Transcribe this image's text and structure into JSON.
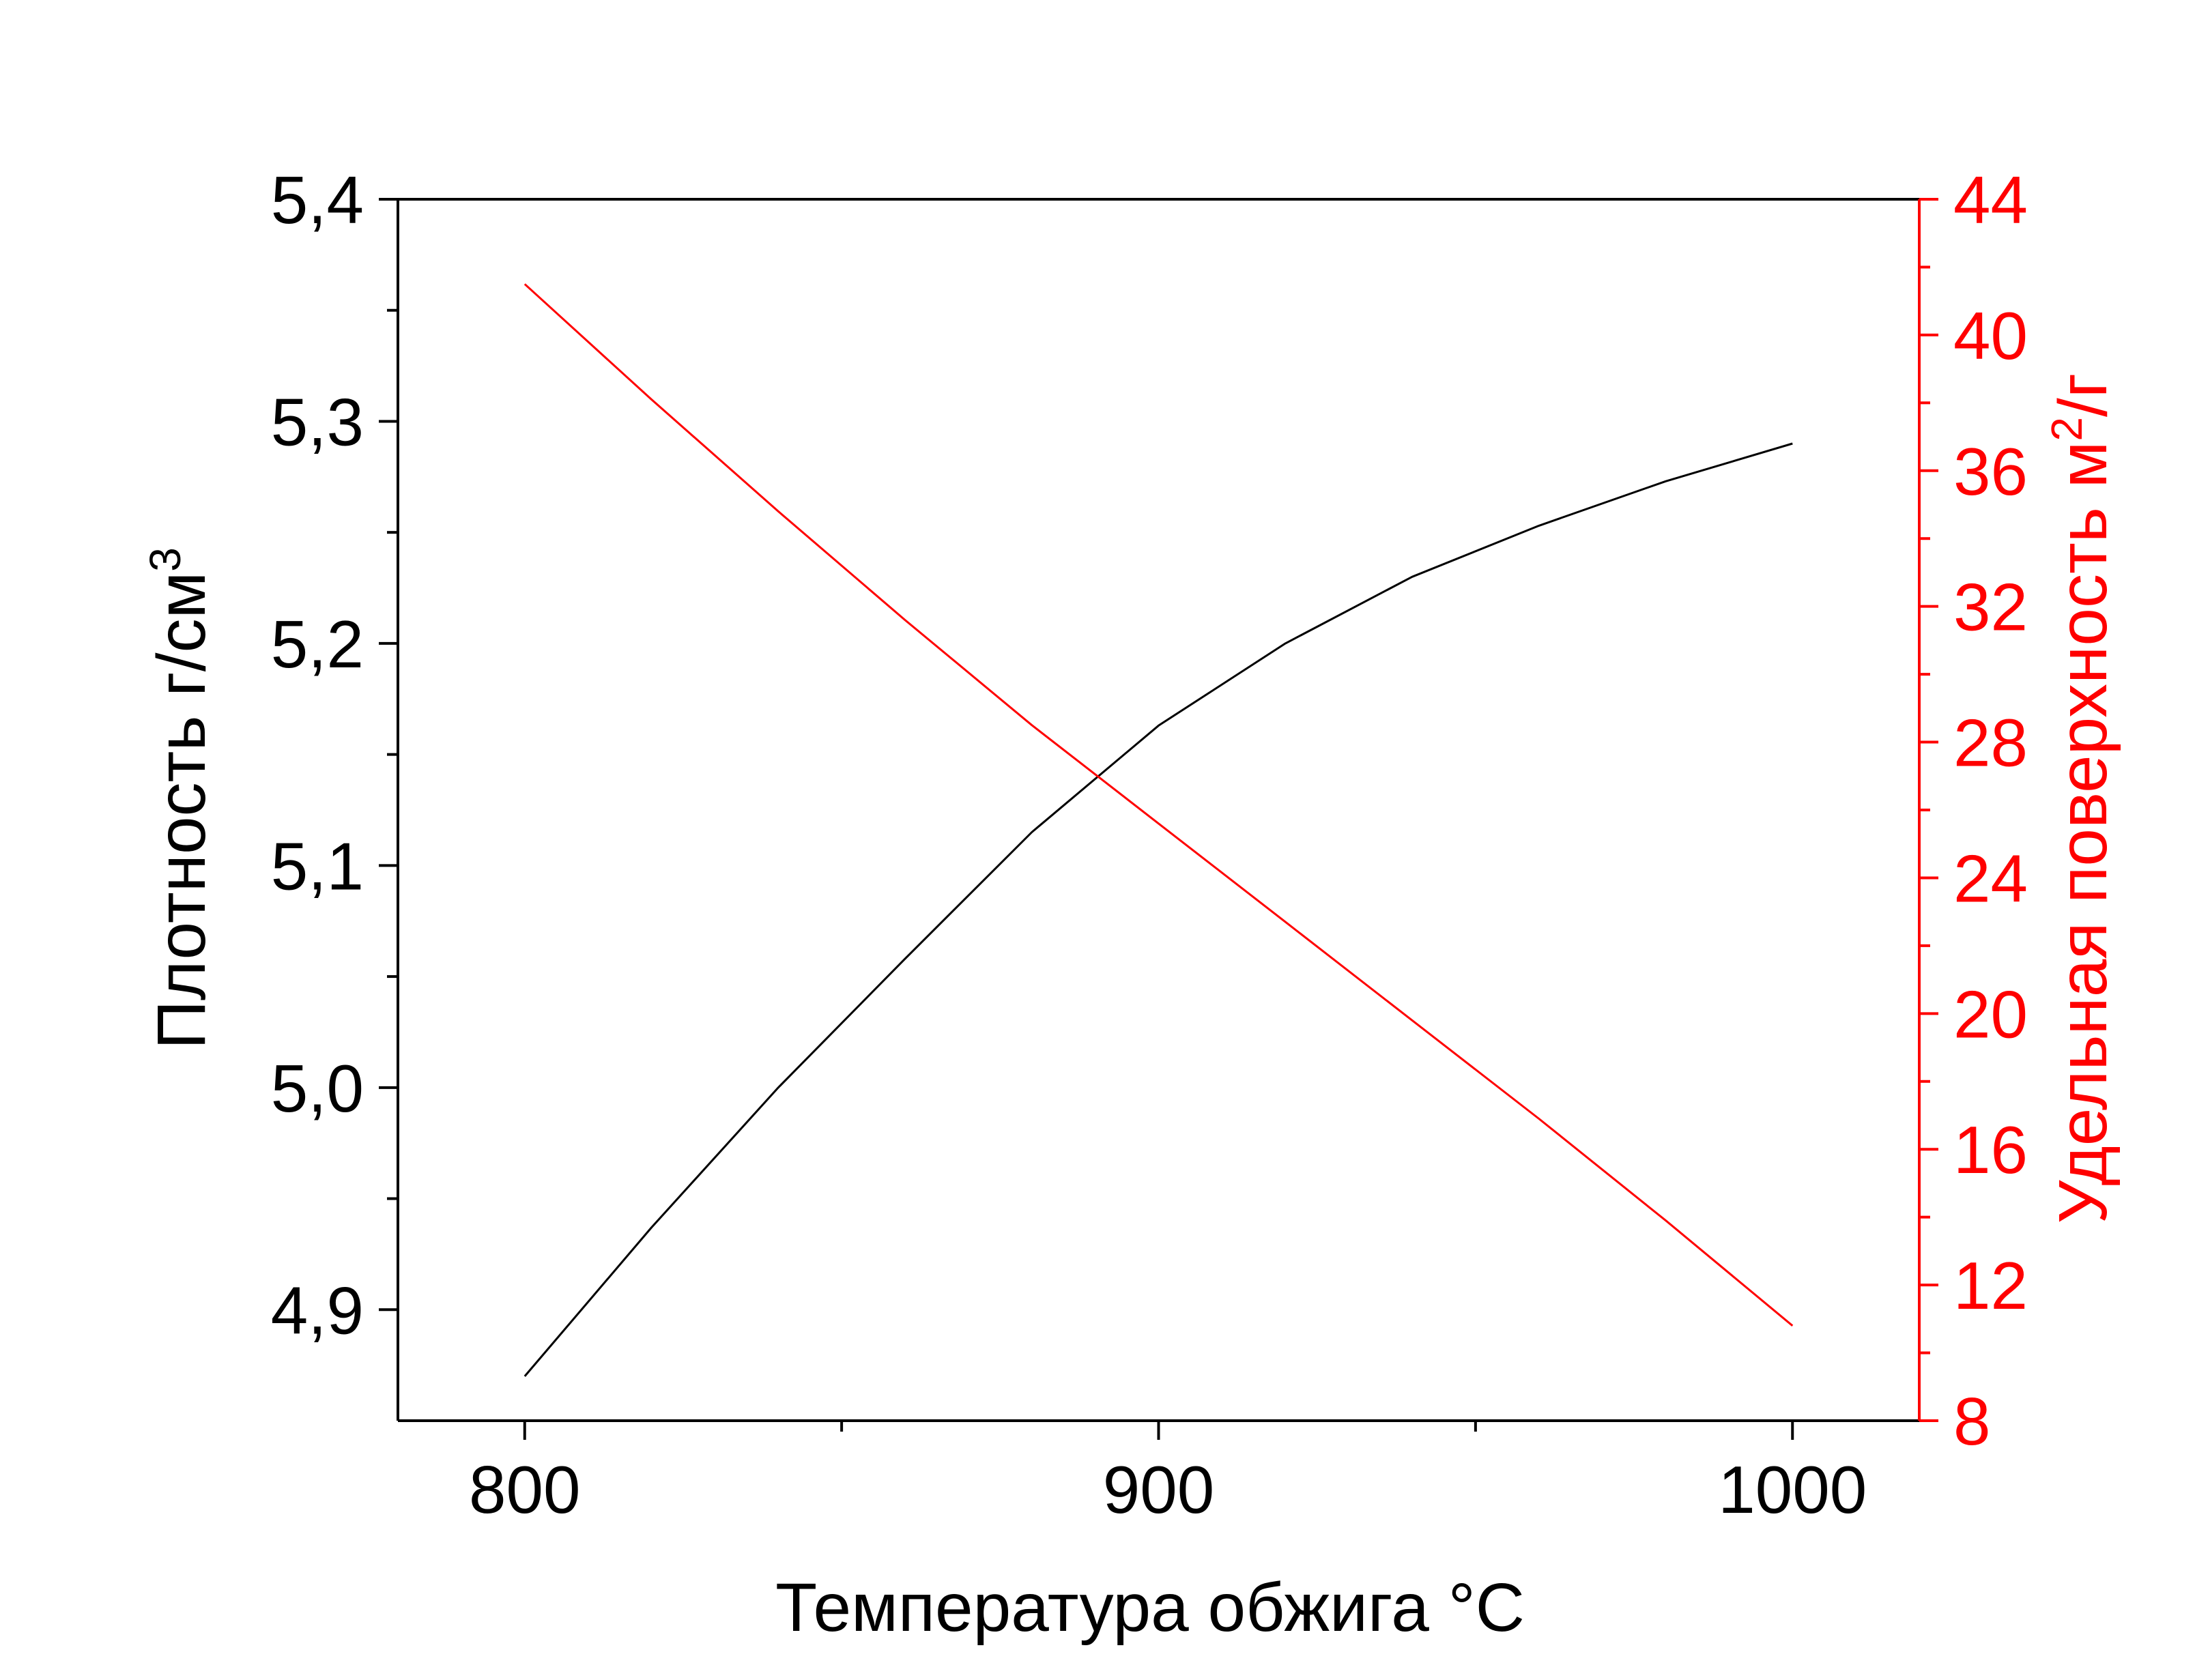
{
  "chart_data": {
    "type": "line",
    "xlabel": "Температура обжига °C",
    "ylabel_left": {
      "text": "Плотность г/см",
      "superscript": "3"
    },
    "ylabel_right": {
      "text": "Удельная поверхность м",
      "superscript": "2",
      "suffix": "/г"
    },
    "xlim": [
      780,
      1020
    ],
    "ylim_left": [
      4.85,
      5.4
    ],
    "ylim_right": [
      8,
      44
    ],
    "x_ticks": [
      {
        "value": 800,
        "label": "800"
      },
      {
        "value": 900,
        "label": "900"
      },
      {
        "value": 1000,
        "label": "1000"
      }
    ],
    "x_minor_ticks": [
      850,
      950
    ],
    "y_left_ticks": [
      {
        "value": 4.9,
        "label": "4,9"
      },
      {
        "value": 5.0,
        "label": "5,0"
      },
      {
        "value": 5.1,
        "label": "5,1"
      },
      {
        "value": 5.2,
        "label": "5,2"
      },
      {
        "value": 5.3,
        "label": "5,3"
      },
      {
        "value": 5.4,
        "label": "5,4"
      }
    ],
    "y_right_ticks": [
      {
        "value": 8,
        "label": "8"
      },
      {
        "value": 12,
        "label": "12"
      },
      {
        "value": 16,
        "label": "16"
      },
      {
        "value": 20,
        "label": "20"
      },
      {
        "value": 24,
        "label": "24"
      },
      {
        "value": 28,
        "label": "28"
      },
      {
        "value": 32,
        "label": "32"
      },
      {
        "value": 36,
        "label": "36"
      },
      {
        "value": 40,
        "label": "40"
      },
      {
        "value": 44,
        "label": "44"
      }
    ],
    "series": [
      {
        "axis": "left",
        "color": "#000000",
        "x": [
          800,
          820,
          840,
          860,
          880,
          900,
          920,
          940,
          960,
          980,
          1000
        ],
        "y": [
          4.87,
          4.937,
          5.0,
          5.058,
          5.115,
          5.163,
          5.2,
          5.23,
          5.253,
          5.273,
          5.29
        ]
      },
      {
        "axis": "right",
        "color": "#ff0000",
        "x": [
          800,
          820,
          840,
          860,
          880,
          900,
          920,
          940,
          960,
          980,
          1000
        ],
        "y": [
          41.5,
          38.1,
          34.8,
          31.6,
          28.5,
          25.6,
          22.7,
          19.8,
          16.9,
          13.9,
          10.8
        ]
      }
    ],
    "grid": false,
    "legend": "none",
    "colors": {
      "left_axis": "#000000",
      "right_axis": "#ff0000"
    }
  }
}
